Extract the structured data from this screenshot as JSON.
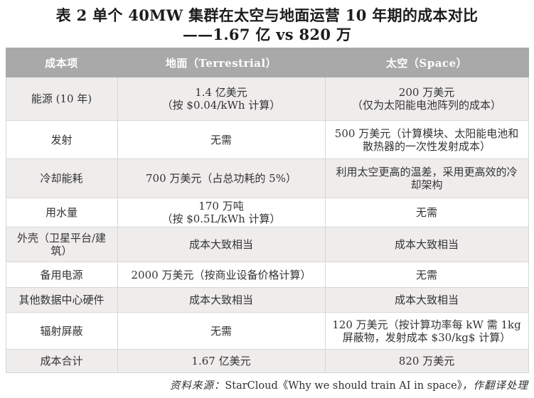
{
  "title": {
    "line1": "表 2  单个 40MW 集群在太空与地面运营 10 年期的成本对比",
    "line2": "——1.67 亿 vs 820 万"
  },
  "table": {
    "headers": {
      "item": "成本项",
      "terrestrial": "地面（Terrestrial）",
      "space": "太空（Space）"
    },
    "rows": [
      {
        "item": "能源 (10 年)",
        "terrestrial": "1.4 亿美元\n（按 $0.04/kWh 计算）",
        "space": "200 万美元\n（仅为太阳能电池阵列的成本）"
      },
      {
        "item": "发射",
        "terrestrial": "无需",
        "space": "500 万美元（计算模块、太阳能电池和散热器的一次性发射成本）"
      },
      {
        "item": "冷却能耗",
        "terrestrial": "700 万美元（占总功耗的 5%）",
        "space": "利用太空更高的温差，采用更高效的冷却架构"
      },
      {
        "item": "用水量",
        "terrestrial": "170 万吨\n（按 $0.5L/kWh 计算）",
        "space": "无需"
      },
      {
        "item": "外壳（卫星平台/建筑）",
        "terrestrial": "成本大致相当",
        "space": "成本大致相当"
      },
      {
        "item": "备用电源",
        "terrestrial": "2000 万美元（按商业设备价格计算）",
        "space": "无需"
      },
      {
        "item": "其他数据中心硬件",
        "terrestrial": "成本大致相当",
        "space": "成本大致相当"
      },
      {
        "item": "辐射屏蔽",
        "terrestrial": "无需",
        "space": "120 万美元（按计算功率每 kW 需 1kg 屏蔽物，发射成本 $30/kg$ 计算）"
      },
      {
        "item": "成本合计",
        "terrestrial": "1.67 亿美元",
        "space": "820 万美元"
      }
    ]
  },
  "footer": {
    "prefix": "资料来源：",
    "source_title": "StarCloud《Why we should train AI in space》",
    "suffix": "，作翻译处理"
  },
  "colors": {
    "header_bg": "#a9a9a9",
    "header_text": "#ffffff",
    "row_alt_bg": "#efecec",
    "row_bg": "#ffffff",
    "border": "#d8d6d6",
    "text": "#333333"
  }
}
